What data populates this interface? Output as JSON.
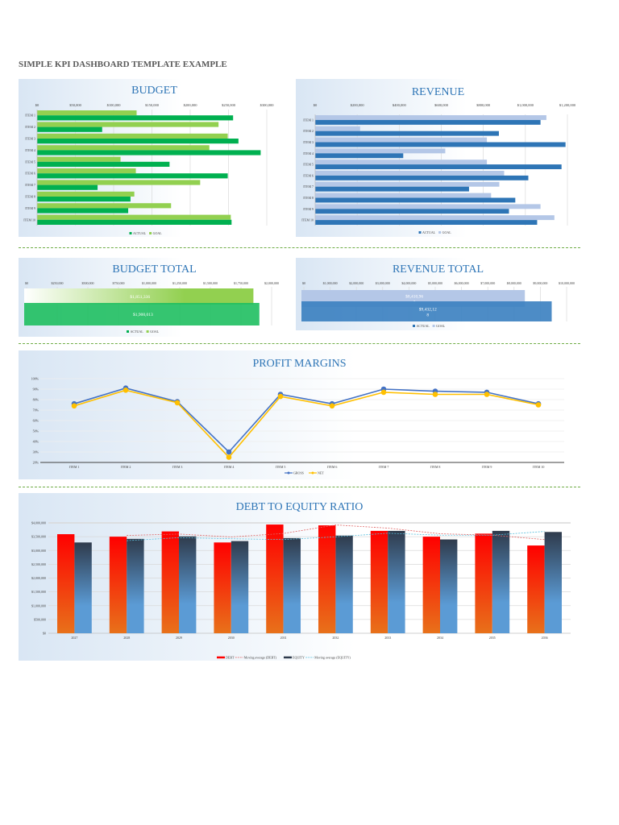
{
  "page_title": "SIMPLE KPI DASHBOARD TEMPLATE EXAMPLE",
  "chart_data": [
    {
      "id": "budget",
      "type": "bar",
      "orientation": "horizontal",
      "title": "BUDGET",
      "categories": [
        "ITEM 1",
        "ITEM 2",
        "ITEM 3",
        "ITEM 4",
        "ITEM 5",
        "ITEM 6",
        "ITEM 7",
        "ITEM 8",
        "ITEM 9",
        "ITEM 10"
      ],
      "xlim": [
        0,
        300000
      ],
      "ticks": [
        "$0",
        "$50,000",
        "$100,000",
        "$150,000",
        "$200,000",
        "$250,000",
        "$300,000"
      ],
      "grid": true,
      "legend": "bottom",
      "series": [
        {
          "name": "GOAL",
          "color": "#92d050",
          "values": [
            130000,
            237000,
            249000,
            225000,
            109000,
            129000,
            213000,
            127000,
            175000,
            253000
          ]
        },
        {
          "name": "ACTUAL",
          "color": "#00b050",
          "values": [
            256000,
            85000,
            263000,
            292000,
            173000,
            249000,
            79000,
            122000,
            119000,
            254000
          ]
        }
      ],
      "legend_order": [
        "ACTUAL",
        "GOAL"
      ]
    },
    {
      "id": "revenue",
      "type": "bar",
      "orientation": "horizontal",
      "title": "REVENUE",
      "categories": [
        "ITEM 1",
        "ITEM 2",
        "ITEM 3",
        "ITEM 4",
        "ITEM 5",
        "ITEM 6",
        "ITEM 7",
        "ITEM 8",
        "ITEM 9",
        "ITEM 10"
      ],
      "xlim": [
        0,
        1200000
      ],
      "ticks": [
        "$0",
        "$200,000",
        "$400,000",
        "$600,000",
        "$800,000",
        "$1,000,000",
        "$1,200,000"
      ],
      "grid": true,
      "legend": "bottom",
      "series": [
        {
          "name": "GOAL",
          "color": "#b4c7e7",
          "values": [
            1100000,
            214000,
            817000,
            619000,
            817000,
            899000,
            876000,
            837000,
            1072000,
            1138000
          ]
        },
        {
          "name": "ACTUAL",
          "color": "#2e75b6",
          "values": [
            1072000,
            874000,
            1191000,
            419000,
            1172000,
            1014000,
            732000,
            952000,
            922000,
            1056000
          ]
        }
      ],
      "legend_order": [
        "ACTUAL",
        "GOAL"
      ]
    },
    {
      "id": "budget_total",
      "type": "bar",
      "orientation": "horizontal",
      "title": "BUDGET TOTAL",
      "xlim": [
        0,
        2000000
      ],
      "ticks": [
        "$0",
        "$250,000",
        "$500,000",
        "$750,000",
        "$1,000,000",
        "$1,250,000",
        "$1,500,000",
        "$1,750,000",
        "$2,000,000"
      ],
      "legend": "bottom",
      "series": [
        {
          "name": "GOAL",
          "color": "#92d050",
          "value": 1851336,
          "label": "$1,851,336"
        },
        {
          "name": "ACTUAL",
          "color": "#00b050",
          "value": 1900013,
          "label": "$1,900,013"
        }
      ],
      "legend_order": [
        "ACTUAL",
        "GOAL"
      ]
    },
    {
      "id": "revenue_total",
      "type": "bar",
      "orientation": "horizontal",
      "title": "REVENUE TOTAL",
      "xlim": [
        0,
        10000000
      ],
      "ticks": [
        "$0",
        "$1,000,000",
        "$2,000,000",
        "$3,000,000",
        "$4,000,000",
        "$5,000,000",
        "$6,000,000",
        "$7,000,000",
        "$8,000,000",
        "$9,000,000",
        "$10,000,000"
      ],
      "legend": "bottom",
      "series": [
        {
          "name": "GOAL",
          "color": "#b4c7e7",
          "value": 8410963,
          "label": [
            "$8,410,96",
            "3"
          ]
        },
        {
          "name": "ACTUAL",
          "color": "#2e75b6",
          "value": 9432128,
          "label": [
            "$9,432,12",
            "8"
          ]
        }
      ],
      "legend_order": [
        "ACTUAL",
        "GOAL"
      ]
    },
    {
      "id": "profit",
      "type": "line",
      "title": "PROFIT MARGINS",
      "categories": [
        "ITEM 1",
        "ITEM 2",
        "ITEM 3",
        "ITEM 4",
        "ITEM 5",
        "ITEM 6",
        "ITEM 7",
        "ITEM 8",
        "ITEM 9",
        "ITEM 10"
      ],
      "ylim": [
        20,
        100
      ],
      "yticks": [
        "20%",
        "30%",
        "40%",
        "50%",
        "60%",
        "70%",
        "80%",
        "90%",
        "100%"
      ],
      "grid": true,
      "legend": "bottom",
      "series": [
        {
          "name": "GROSS",
          "color": "#4472c4",
          "values": [
            76,
            91,
            78,
            30,
            85,
            76,
            90,
            88,
            87,
            76
          ]
        },
        {
          "name": "NET",
          "color": "#ffc000",
          "values": [
            74,
            89,
            77,
            25,
            83,
            74,
            87,
            85,
            85,
            75
          ]
        }
      ]
    },
    {
      "id": "debt",
      "type": "bar",
      "title": "DEBT TO EQUITY RATIO",
      "categories": [
        "2027",
        "2028",
        "2029",
        "2030",
        "2031",
        "2032",
        "2033",
        "2034",
        "2035",
        "2036"
      ],
      "ylim": [
        0,
        4000000
      ],
      "yticks": [
        "$0",
        "$500,000",
        "$1,000,000",
        "$1,500,000",
        "$2,000,000",
        "$2,500,000",
        "$3,000,000",
        "$3,500,000",
        "$4,000,000"
      ],
      "grid": true,
      "legend": "bottom",
      "series": [
        {
          "name": "DEBT",
          "color": "#ff0000",
          "values": [
            3590000,
            3500000,
            3690000,
            3290000,
            3940000,
            3910000,
            3710000,
            3500000,
            3610000,
            3180000
          ]
        },
        {
          "name": "EQUITY",
          "color": "#2f3b4c",
          "values": [
            3290000,
            3420000,
            3510000,
            3340000,
            3450000,
            3540000,
            3710000,
            3400000,
            3710000,
            3670000
          ]
        }
      ],
      "trendlines": [
        {
          "name": "Moving average (DEBT)",
          "color": "#e06666"
        },
        {
          "name": "Moving average (EQUITY)",
          "color": "#5bc0de"
        }
      ]
    }
  ]
}
